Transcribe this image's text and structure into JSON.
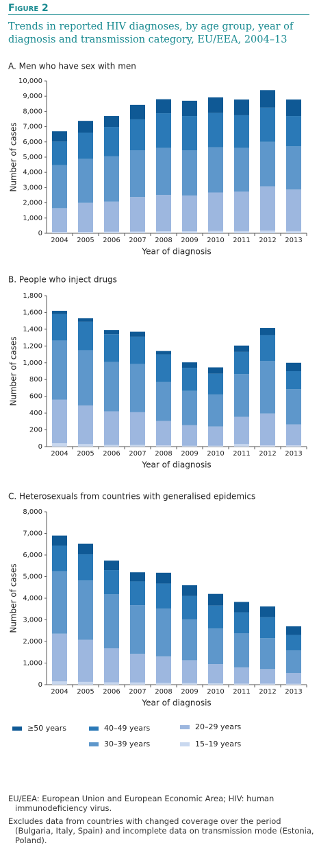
{
  "header": {
    "figure": "Figure 2",
    "title": "Trends in reported HIV diagnoses, by age group, year of diagnosis and transmission category, EU/EEA, 2004–13"
  },
  "legend": [
    {
      "name": "15–19 years",
      "color": "#c9d8ef"
    },
    {
      "name": "20–29 years",
      "color": "#9db7df"
    },
    {
      "name": "30–39 years",
      "color": "#5e97cb"
    },
    {
      "name": "40–49 years",
      "color": "#2a79b7"
    },
    {
      "name": "≥50 years",
      "color": "#0f5995"
    }
  ],
  "chart_data": [
    {
      "type": "stacked_bar",
      "title": "A. Men who have sex with men",
      "xlabel": "Year of diagnosis",
      "ylabel": "Number of cases",
      "categories": [
        "2004",
        "2005",
        "2006",
        "2007",
        "2008",
        "2009",
        "2010",
        "2011",
        "2012",
        "2013"
      ],
      "series": [
        {
          "values": [
            80,
            90,
            100,
            110,
            130,
            130,
            150,
            140,
            170,
            140
          ]
        },
        {
          "values": [
            1570,
            1910,
            1980,
            2270,
            2390,
            2350,
            2530,
            2590,
            2910,
            2730
          ]
        },
        {
          "values": [
            2830,
            2880,
            2970,
            3070,
            3080,
            2970,
            2970,
            2870,
            2920,
            2850
          ]
        },
        {
          "values": [
            1540,
            1720,
            1930,
            2030,
            2280,
            2250,
            2250,
            2150,
            2250,
            1980
          ]
        },
        {
          "values": [
            680,
            780,
            720,
            950,
            920,
            1000,
            1020,
            1030,
            1150,
            1080
          ]
        }
      ],
      "ylim": [
        0,
        10000
      ],
      "yticks": [
        0,
        {
          "value": 1000,
          "label": "1,000"
        },
        {
          "value": 2000,
          "label": "2,000"
        },
        {
          "value": 3000,
          "label": "3,000"
        },
        {
          "value": 4000,
          "label": "4,000"
        },
        {
          "value": 5000,
          "label": "5,000"
        },
        {
          "value": 6000,
          "label": "6,000"
        },
        {
          "value": 7000,
          "label": "7,000"
        },
        {
          "value": 8000,
          "label": "8,000"
        },
        {
          "value": 9000,
          "label": "9,000"
        },
        {
          "value": 10000,
          "label": "10,000"
        }
      ]
    },
    {
      "type": "stacked_bar",
      "title": "B. People who inject drugs",
      "xlabel": "Year of diagnosis",
      "ylabel": "Number of cases",
      "categories": [
        "2004",
        "2005",
        "2006",
        "2007",
        "2008",
        "2009",
        "2010",
        "2011",
        "2012",
        "2013"
      ],
      "series": [
        {
          "values": [
            40,
            30,
            20,
            20,
            15,
            10,
            10,
            30,
            15,
            15
          ]
        },
        {
          "values": [
            520,
            460,
            400,
            390,
            290,
            245,
            230,
            325,
            380,
            250
          ]
        },
        {
          "values": [
            705,
            660,
            590,
            575,
            465,
            410,
            380,
            510,
            625,
            420
          ]
        },
        {
          "values": [
            315,
            340,
            330,
            325,
            330,
            275,
            250,
            265,
            310,
            215
          ]
        },
        {
          "values": [
            40,
            40,
            50,
            60,
            40,
            65,
            75,
            75,
            85,
            100
          ]
        }
      ],
      "ylim": [
        0,
        1800
      ],
      "yticks": [
        0,
        200,
        400,
        600,
        800,
        {
          "value": 1000,
          "label": "1,000"
        },
        {
          "value": 1200,
          "label": "1,200"
        },
        {
          "value": 1400,
          "label": "1,400"
        },
        {
          "value": 1600,
          "label": "1,600"
        },
        {
          "value": 1800,
          "label": "1,800"
        }
      ]
    },
    {
      "type": "stacked_bar",
      "title": "C. Heterosexuals from countries with generalised epidemics",
      "xlabel": "Year of diagnosis",
      "ylabel": "Number of cases",
      "categories": [
        "2004",
        "2005",
        "2006",
        "2007",
        "2008",
        "2009",
        "2010",
        "2011",
        "2012",
        "2013"
      ],
      "series": [
        {
          "values": [
            150,
            130,
            110,
            100,
            80,
            70,
            60,
            50,
            50,
            40
          ]
        },
        {
          "values": [
            2210,
            1950,
            1570,
            1330,
            1230,
            1060,
            890,
            750,
            670,
            500
          ]
        },
        {
          "values": [
            2890,
            2740,
            2500,
            2250,
            2210,
            1890,
            1650,
            1580,
            1430,
            1040
          ]
        },
        {
          "values": [
            1180,
            1210,
            1120,
            1100,
            1160,
            1080,
            1060,
            970,
            970,
            720
          ]
        },
        {
          "values": [
            470,
            490,
            440,
            420,
            500,
            500,
            540,
            480,
            500,
            400
          ]
        }
      ],
      "ylim": [
        0,
        8000
      ],
      "yticks": [
        0,
        {
          "value": 1000,
          "label": "1,000"
        },
        {
          "value": 2000,
          "label": "2,000"
        },
        {
          "value": 3000,
          "label": "3,000"
        },
        {
          "value": 4000,
          "label": "4,000"
        },
        {
          "value": 5000,
          "label": "5,000"
        },
        {
          "value": 6000,
          "label": "6,000"
        },
        {
          "value": 7000,
          "label": "7,000"
        },
        {
          "value": 8000,
          "label": "8,000"
        }
      ]
    }
  ],
  "footnotes": [
    "EU/EEA: European Union and European Economic Area; HIV: human immunodeficiency virus.",
    "Excludes data from countries with changed coverage over the period (Bulgaria, Italy, Spain) and incomplete data on transmission mode (Estonia, Poland)."
  ]
}
